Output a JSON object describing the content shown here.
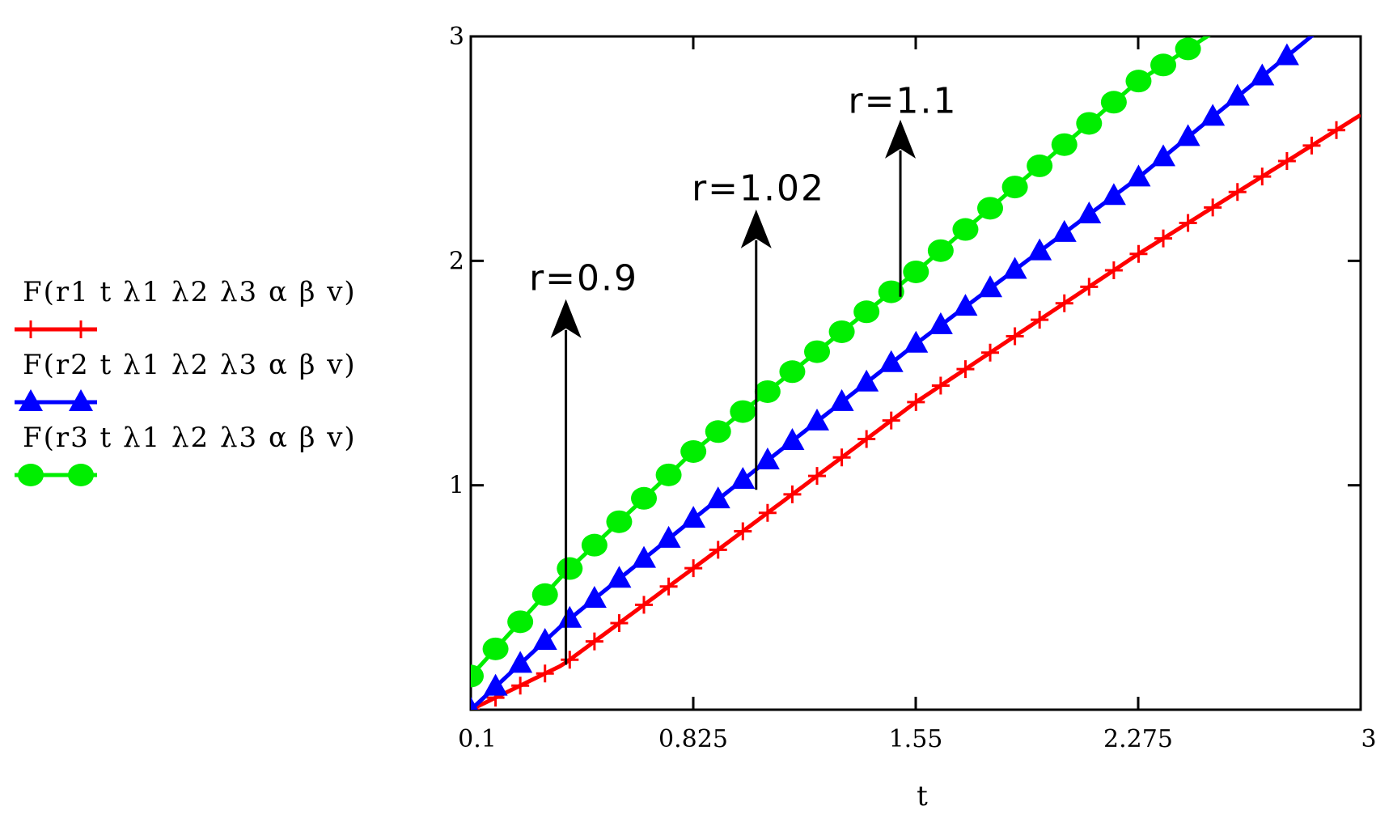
{
  "chart_data": {
    "type": "line",
    "title": "",
    "xlabel": "t",
    "ylabel": "",
    "xlim": [
      0.1,
      3
    ],
    "ylim": [
      0,
      3
    ],
    "x_ticks": [
      "0.1",
      "0.825",
      "1.55",
      "2.275",
      "3"
    ],
    "y_ticks": [
      "1",
      "2",
      "3"
    ],
    "y_tick_values": [
      1,
      2,
      3
    ],
    "grid": false,
    "legend_position": "left",
    "series": [
      {
        "name": "F(r1 t λ1 λ2 λ3 α β v)",
        "color": "#ff0000",
        "marker": "plus",
        "x_start": 0.1,
        "x_step": 0.0806,
        "x_end": 3.0,
        "points": [
          [
            0.1,
            0.0
          ],
          [
            0.4,
            0.2
          ],
          [
            0.825,
            0.63
          ],
          [
            1.55,
            1.37
          ],
          [
            2.275,
            2.03
          ],
          [
            3.0,
            2.65
          ]
        ]
      },
      {
        "name": "F(r2 t λ1 λ2 λ3 α β v)",
        "color": "#0000ff",
        "marker": "triangle",
        "x_start": 0.1,
        "x_step": 0.0806,
        "x_end": 2.95,
        "points": [
          [
            0.1,
            0.0
          ],
          [
            0.4,
            0.38
          ],
          [
            0.825,
            0.85
          ],
          [
            1.55,
            1.63
          ],
          [
            2.275,
            2.37
          ],
          [
            3.0,
            3.18
          ]
        ]
      },
      {
        "name": "F(r3 t λ1 λ2 λ3 α β v)",
        "color": "#00ee00",
        "marker": "circle",
        "x_start": 0.1,
        "x_step": 0.0806,
        "x_end": 2.5,
        "points": [
          [
            0.1,
            0.15
          ],
          [
            0.4,
            0.6
          ],
          [
            0.825,
            1.15
          ],
          [
            1.55,
            1.95
          ],
          [
            2.275,
            2.8
          ],
          [
            2.5,
            3.0
          ]
        ]
      }
    ],
    "annotations": [
      {
        "text": "r=0.9",
        "arrow_x": 0.41,
        "arrow_y_from": 0.2,
        "arrow_y_to": 1.8,
        "label_x": 0.29,
        "label_y": 1.87
      },
      {
        "text": "r=1.02",
        "arrow_x": 1.03,
        "arrow_y_from": 0.98,
        "arrow_y_to": 2.2,
        "label_x": 0.82,
        "label_y": 2.27
      },
      {
        "text": "r=1.1",
        "arrow_x": 1.5,
        "arrow_y_from": 1.84,
        "arrow_y_to": 2.6,
        "label_x": 1.33,
        "label_y": 2.66
      }
    ]
  }
}
